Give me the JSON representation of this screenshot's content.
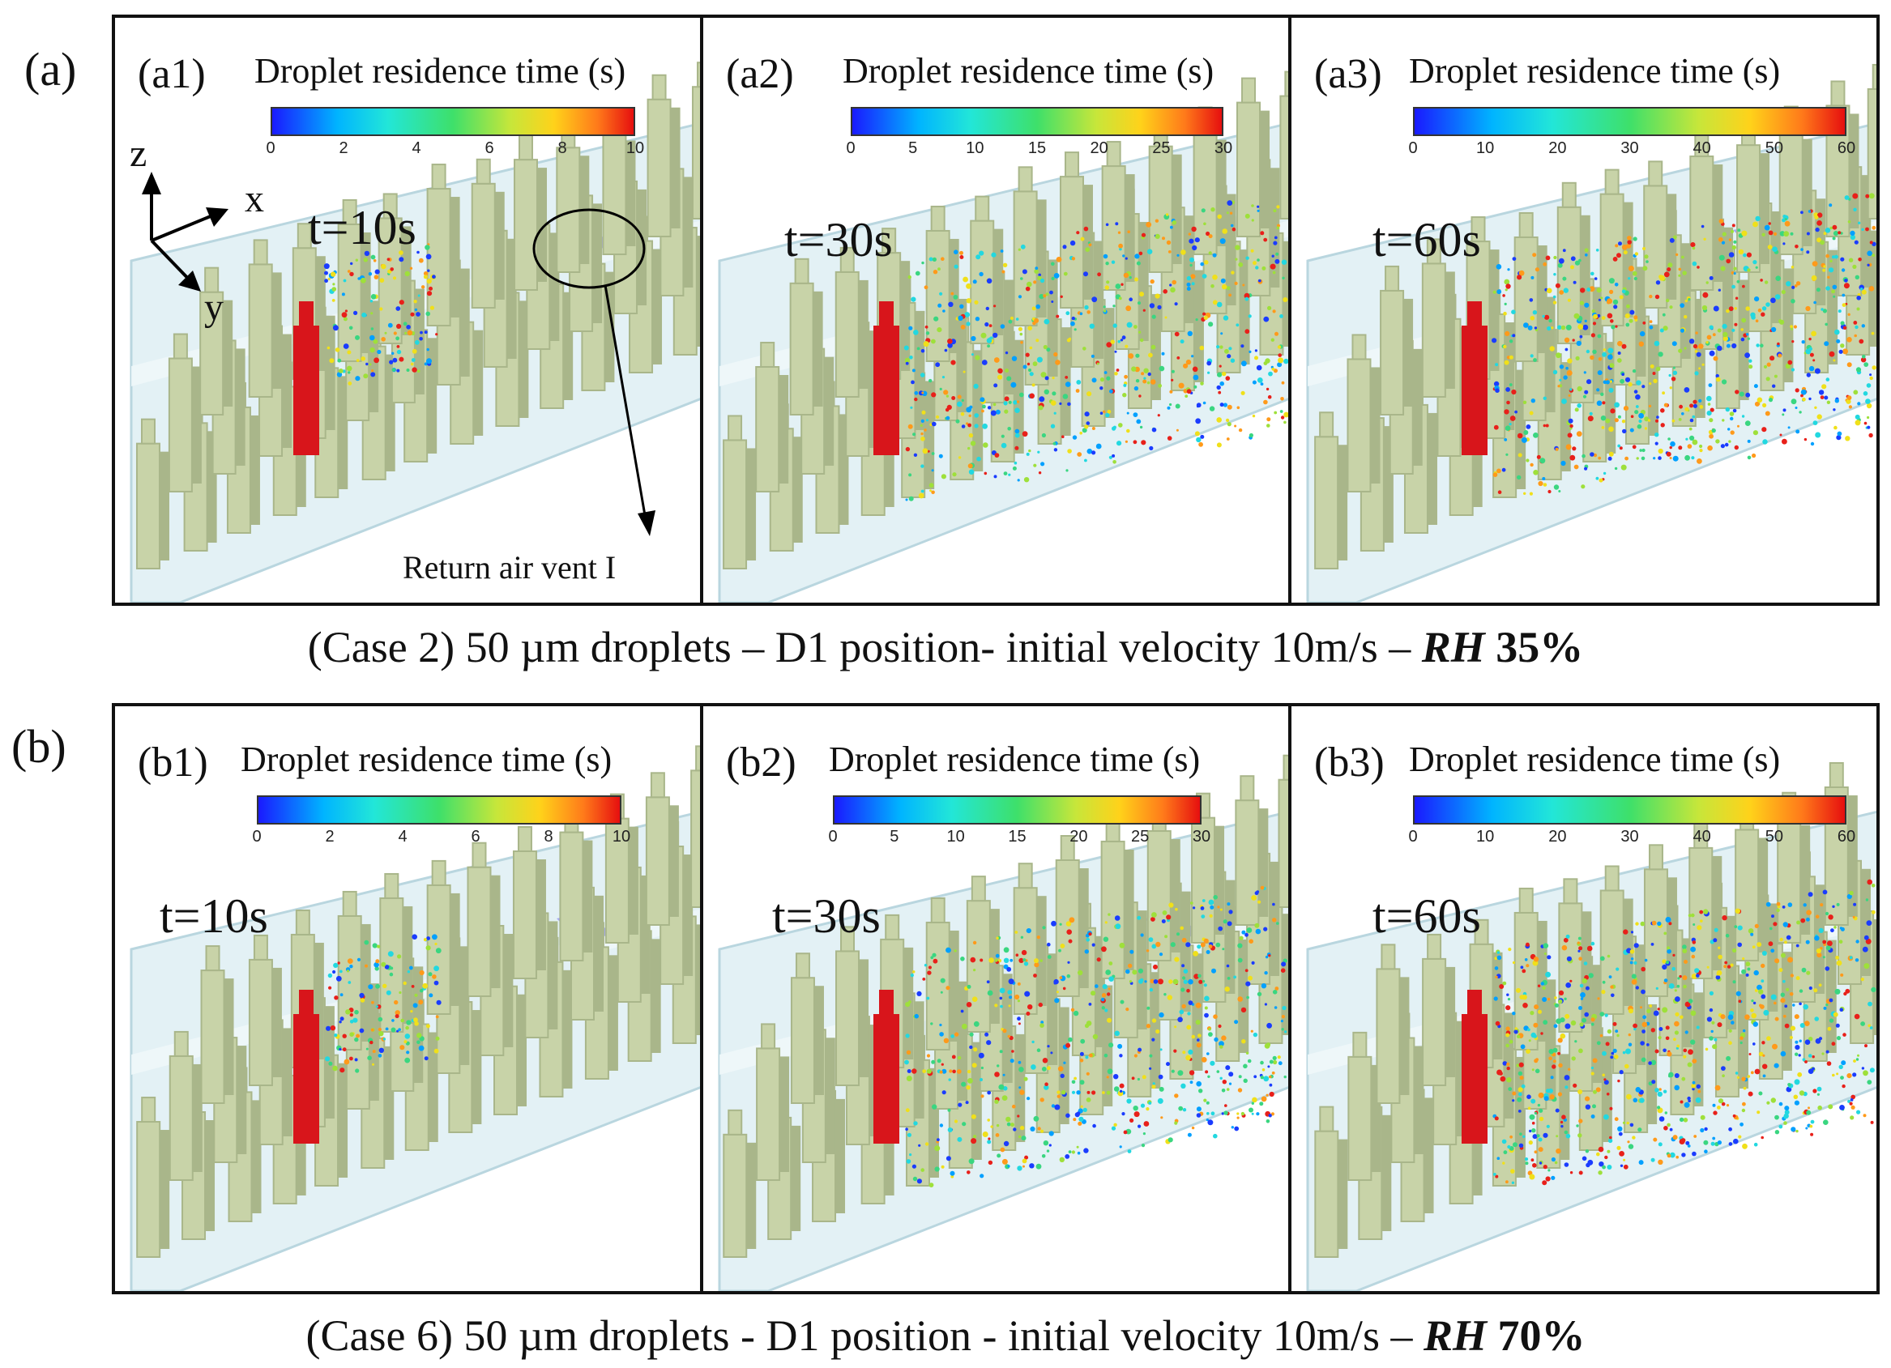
{
  "rows": [
    {
      "label": "(a)",
      "caption_prefix": "(Case 2) 50 µm droplets – D1 position- initial velocity 10m/s – ",
      "caption_rh_italic": "RH",
      "caption_rh_value": " 35%",
      "panels": [
        {
          "id": "(a1)",
          "colorbar_title": "Droplet residence time (s)",
          "ticks": [
            "0",
            "2",
            "4",
            "6",
            "8",
            "10"
          ],
          "time": "t=10s"
        },
        {
          "id": "(a2)",
          "colorbar_title": "Droplet residence time (s)",
          "ticks": [
            "0",
            "5",
            "10",
            "15",
            "20",
            "25",
            "30"
          ],
          "time": "t=30s"
        },
        {
          "id": "(a3)",
          "colorbar_title": "Droplet residence time (s)",
          "ticks": [
            "0",
            "10",
            "20",
            "30",
            "40",
            "50",
            "60"
          ],
          "time": "t=60s"
        }
      ]
    },
    {
      "label": "(b)",
      "caption_prefix": "(Case 6)  50 µm droplets -  D1 position - initial velocity 10m/s – ",
      "caption_rh_italic": "RH",
      "caption_rh_value": " 70%",
      "panels": [
        {
          "id": "(b1)",
          "colorbar_title": "Droplet residence time (s)",
          "ticks": [
            "0",
            "2",
            "4",
            "6",
            "8",
            "10"
          ],
          "time": "t=10s"
        },
        {
          "id": "(b2)",
          "colorbar_title": "Droplet residence time (s)",
          "ticks": [
            "0",
            "5",
            "10",
            "15",
            "20",
            "25",
            "30"
          ],
          "time": "t=30s"
        },
        {
          "id": "(b3)",
          "colorbar_title": "Droplet residence time (s)",
          "ticks": [
            "0",
            "10",
            "20",
            "30",
            "40",
            "50",
            "60"
          ],
          "time": "t=60s"
        }
      ]
    }
  ],
  "axes": {
    "z": "z",
    "x": "x",
    "y": "y"
  },
  "annotation": {
    "vent_label": "Return air vent I"
  },
  "colors": {
    "mannequin": "#c8d3a8",
    "mannequin_shade": "#a9b68a",
    "source": "#d8151b",
    "vent": "#9a9cf0",
    "cabin": "#e3f1f5",
    "cabin_edge": "#b9d6df"
  }
}
